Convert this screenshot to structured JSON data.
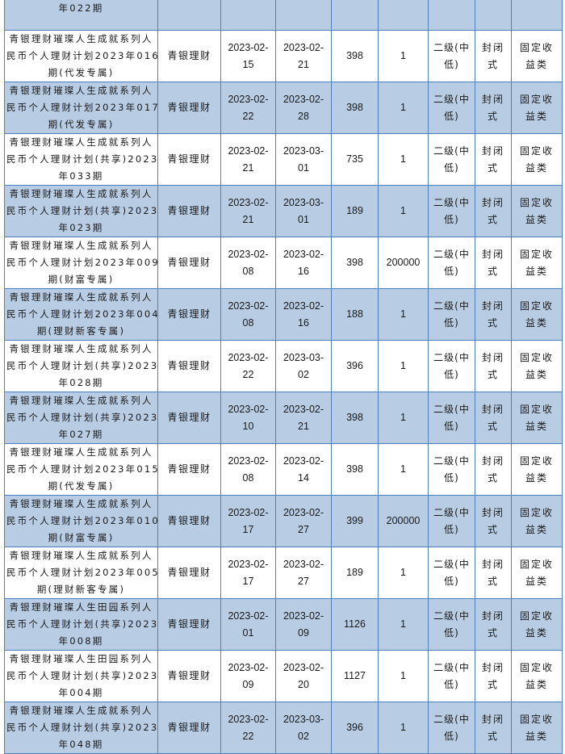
{
  "colors": {
    "border": "#4f81bd",
    "row_blue": "#b8cce4",
    "row_white": "#ffffff"
  },
  "rows": [
    {
      "name_lines": [
        "年022期"
      ],
      "issuer": "",
      "start": "",
      "end": "",
      "days": "",
      "min": "",
      "risk": "",
      "type": "",
      "category": "",
      "shade": "blue"
    },
    {
      "name_lines": [
        "青银理财璀璨人生成就系列人",
        "民币个人理财计划2023年016",
        "期(代发专属)"
      ],
      "issuer": "青银理财",
      "start": "2023-02-15",
      "end": "2023-02-21",
      "days": "398",
      "min": "1",
      "risk": "二级(中低)",
      "type": "封闭式",
      "category": "固定收益类",
      "shade": "white"
    },
    {
      "name_lines": [
        "青银理财璀璨人生成就系列人",
        "民币个人理财计划2023年017",
        "期(代发专属)"
      ],
      "issuer": "青银理财",
      "start": "2023-02-22",
      "end": "2023-02-28",
      "days": "398",
      "min": "1",
      "risk": "二级(中低)",
      "type": "封闭式",
      "category": "固定收益类",
      "shade": "blue"
    },
    {
      "name_lines": [
        "青银理财璀璨人生成就系列人",
        "民币个人理财计划(共享)2023",
        "年033期"
      ],
      "issuer": "青银理财",
      "start": "2023-02-21",
      "end": "2023-03-01",
      "days": "735",
      "min": "1",
      "risk": "二级(中低)",
      "type": "封闭式",
      "category": "固定收益类",
      "shade": "white"
    },
    {
      "name_lines": [
        "青银理财璀璨人生成就系列人",
        "民币个人理财计划(共享)2023",
        "年023期"
      ],
      "issuer": "青银理财",
      "start": "2023-02-21",
      "end": "2023-03-01",
      "days": "189",
      "min": "1",
      "risk": "二级(中低)",
      "type": "封闭式",
      "category": "固定收益类",
      "shade": "blue"
    },
    {
      "name_lines": [
        "青银理财璀璨人生成就系列人",
        "民币个人理财计划2023年009",
        "期(财富专属)"
      ],
      "issuer": "青银理财",
      "start": "2023-02-08",
      "end": "2023-02-16",
      "days": "398",
      "min": "200000",
      "risk": "二级(中低)",
      "type": "封闭式",
      "category": "固定收益类",
      "shade": "white"
    },
    {
      "name_lines": [
        "青银理财璀璨人生成就系列人",
        "民币个人理财计划2023年004",
        "期(理财新客专属)"
      ],
      "issuer": "青银理财",
      "start": "2023-02-08",
      "end": "2023-02-16",
      "days": "188",
      "min": "1",
      "risk": "二级(中低)",
      "type": "封闭式",
      "category": "固定收益类",
      "shade": "blue"
    },
    {
      "name_lines": [
        "青银理财璀璨人生成就系列人",
        "民币个人理财计划(共享)2023",
        "年028期"
      ],
      "issuer": "青银理财",
      "start": "2023-02-22",
      "end": "2023-03-02",
      "days": "396",
      "min": "1",
      "risk": "二级(中低)",
      "type": "封闭式",
      "category": "固定收益类",
      "shade": "white"
    },
    {
      "name_lines": [
        "青银理财璀璨人生成就系列人",
        "民币个人理财计划(共享)2023",
        "年027期"
      ],
      "issuer": "青银理财",
      "start": "2023-02-10",
      "end": "2023-02-21",
      "days": "398",
      "min": "1",
      "risk": "二级(中低)",
      "type": "封闭式",
      "category": "固定收益类",
      "shade": "blue"
    },
    {
      "name_lines": [
        "青银理财璀璨人生成就系列人",
        "民币个人理财计划2023年015",
        "期(代发专属)"
      ],
      "issuer": "青银理财",
      "start": "2023-02-08",
      "end": "2023-02-14",
      "days": "398",
      "min": "1",
      "risk": "二级(中低)",
      "type": "封闭式",
      "category": "固定收益类",
      "shade": "white"
    },
    {
      "name_lines": [
        "青银理财璀璨人生成就系列人",
        "民币个人理财计划2023年010",
        "期(财富专属)"
      ],
      "issuer": "青银理财",
      "start": "2023-02-17",
      "end": "2023-02-27",
      "days": "399",
      "min": "200000",
      "risk": "二级(中低)",
      "type": "封闭式",
      "category": "固定收益类",
      "shade": "blue"
    },
    {
      "name_lines": [
        "青银理财璀璨人生成就系列人",
        "民币个人理财计划2023年005",
        "期(理财新客专属)"
      ],
      "issuer": "青银理财",
      "start": "2023-02-17",
      "end": "2023-02-27",
      "days": "189",
      "min": "1",
      "risk": "二级(中低)",
      "type": "封闭式",
      "category": "固定收益类",
      "shade": "white"
    },
    {
      "name_lines": [
        "青银理财璀璨人生田园系列人",
        "民币个人理财计划(共享)2023",
        "年008期"
      ],
      "issuer": "青银理财",
      "start": "2023-02-01",
      "end": "2023-02-09",
      "days": "1126",
      "min": "1",
      "risk": "二级(中低)",
      "type": "封闭式",
      "category": "固定收益类",
      "shade": "blue"
    },
    {
      "name_lines": [
        "青银理财璀璨人生田园系列人",
        "民币个人理财计划(共享)2023",
        "年004期"
      ],
      "issuer": "青银理财",
      "start": "2023-02-09",
      "end": "2023-02-20",
      "days": "1127",
      "min": "1",
      "risk": "二级(中低)",
      "type": "封闭式",
      "category": "固定收益类",
      "shade": "white"
    },
    {
      "name_lines": [
        "青银理财璀璨人生成就系列人",
        "民币个人理财计划(共享)2023",
        "年048期"
      ],
      "issuer": "青银理财",
      "start": "2023-02-22",
      "end": "2023-03-02",
      "days": "396",
      "min": "1",
      "risk": "二级(中低)",
      "type": "封闭式",
      "category": "固定收益类",
      "shade": "blue"
    }
  ]
}
